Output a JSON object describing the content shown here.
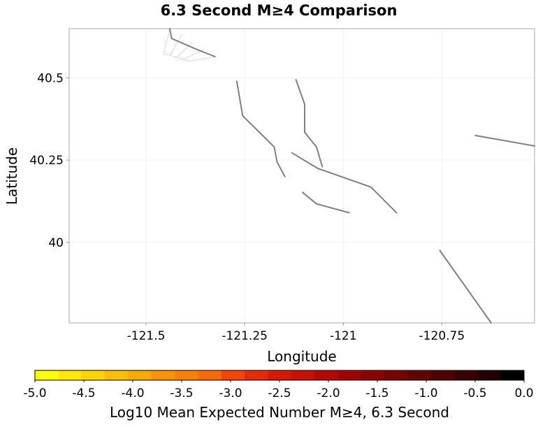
{
  "chart_data": {
    "type": "map",
    "title": "6.3 Second M≥4 Comparison",
    "xlabel": "Longitude",
    "ylabel": "Latitude",
    "xlim": [
      -121.695,
      -120.515
    ],
    "ylim": [
      39.755,
      40.65
    ],
    "x_ticks": [
      -121.5,
      -121.25,
      -121.0,
      -120.75
    ],
    "x_tick_labels": [
      "-121.5",
      "-121.25",
      "-121",
      "-120.75"
    ],
    "y_ticks": [
      40.0,
      40.25,
      40.5
    ],
    "y_tick_labels": [
      "40",
      "40.25",
      "40.5"
    ],
    "grid": true,
    "fault_color": "#808080",
    "faults": [
      {
        "points": [
          [
            -121.44,
            40.65
          ],
          [
            -121.435,
            40.62
          ],
          [
            -121.37,
            40.586
          ],
          [
            -121.325,
            40.565
          ]
        ]
      },
      {
        "points": [
          [
            -121.27,
            40.49
          ],
          [
            -121.255,
            40.385
          ],
          [
            -121.175,
            40.29
          ],
          [
            -121.168,
            40.245
          ],
          [
            -121.148,
            40.2
          ]
        ]
      },
      {
        "points": [
          [
            -121.12,
            40.495
          ],
          [
            -121.098,
            40.42
          ],
          [
            -121.098,
            40.335
          ],
          [
            -121.068,
            40.29
          ],
          [
            -121.053,
            40.23
          ]
        ]
      },
      {
        "points": [
          [
            -121.13,
            40.272
          ],
          [
            -121.065,
            40.225
          ],
          [
            -120.93,
            40.168
          ],
          [
            -120.865,
            40.09
          ]
        ]
      },
      {
        "points": [
          [
            -121.103,
            40.152
          ],
          [
            -121.068,
            40.117
          ],
          [
            -120.985,
            40.09
          ]
        ]
      },
      {
        "points": [
          [
            -120.665,
            40.325
          ],
          [
            -120.515,
            40.293
          ]
        ]
      },
      {
        "points": [
          [
            -120.755,
            39.975
          ],
          [
            -120.625,
            39.755
          ]
        ]
      }
    ],
    "fault_surfaces": [
      {
        "points": [
          [
            -121.44,
            40.65
          ],
          [
            -121.435,
            40.62
          ],
          [
            -121.37,
            40.586
          ],
          [
            -121.325,
            40.565
          ],
          [
            -121.39,
            40.55
          ],
          [
            -121.455,
            40.575
          ],
          [
            -121.44,
            40.65
          ]
        ]
      }
    ],
    "colorbar": {
      "label": "Log10 Mean Expected Number M≥4, 6.3 Second",
      "min": -5.0,
      "max": 0.0,
      "ticks": [
        -5.0,
        -4.5,
        -4.0,
        -3.5,
        -3.0,
        -2.5,
        -2.0,
        -1.5,
        -1.0,
        -0.5,
        0.0
      ],
      "tick_labels": [
        "-5.0",
        "-4.5",
        "-4.0",
        "-3.5",
        "-3.0",
        "-2.5",
        "-2.0",
        "-1.5",
        "-1.0",
        "-0.5",
        "0.0"
      ],
      "colors": [
        "#ffff00",
        "#ffea00",
        "#ffd500",
        "#ffbf00",
        "#ffaa00",
        "#ff9400",
        "#ff7f00",
        "#ff6a00",
        "#f54500",
        "#e82a00",
        "#d91a00",
        "#c81000",
        "#b50800",
        "#a10000",
        "#8b0000",
        "#760000",
        "#620000",
        "#4f0000",
        "#3a0000",
        "#240000",
        "#000000"
      ]
    }
  }
}
